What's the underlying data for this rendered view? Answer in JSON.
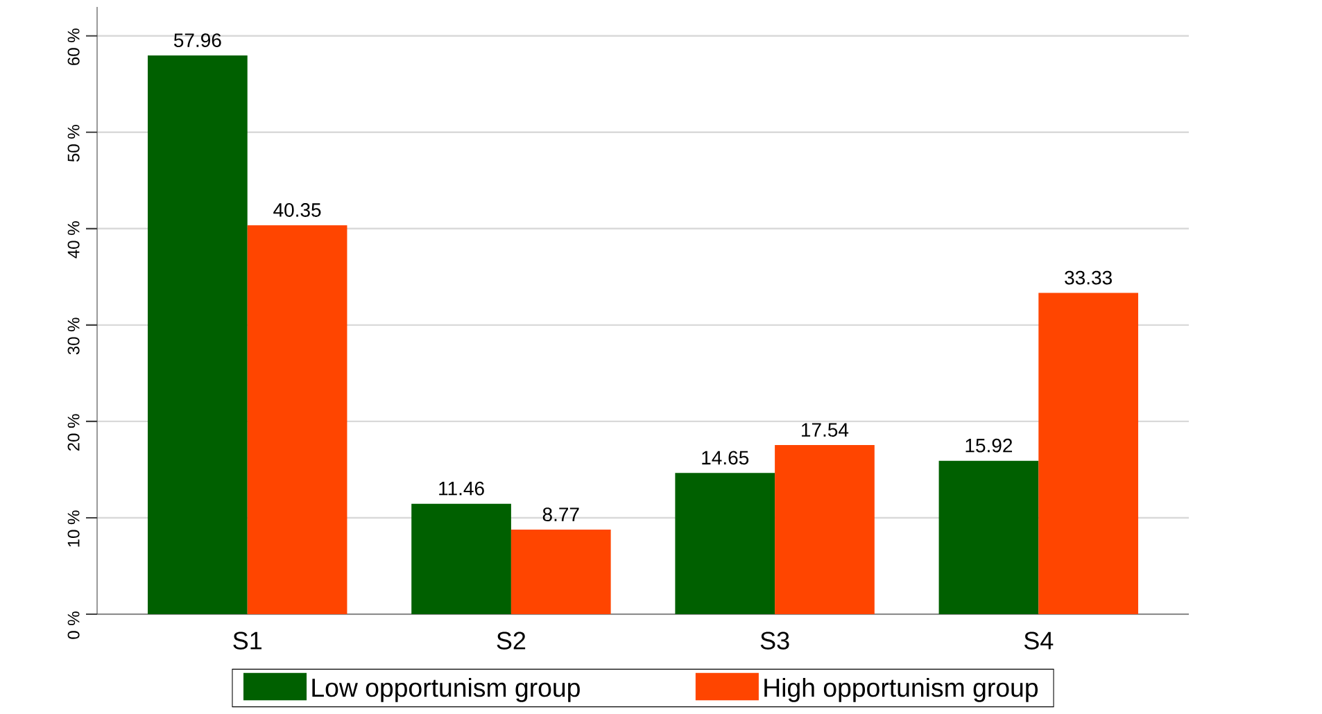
{
  "chart_data": {
    "type": "bar",
    "categories": [
      "S1",
      "S2",
      "S3",
      "S4"
    ],
    "series": [
      {
        "name": "Low opportunism group",
        "color": "#006000",
        "values": [
          57.96,
          11.46,
          14.65,
          15.92
        ]
      },
      {
        "name": "High opportunism group",
        "color": "#ff4500",
        "values": [
          40.35,
          8.77,
          17.54,
          33.33
        ]
      }
    ],
    "ylim": [
      0,
      63
    ],
    "yticks": [
      {
        "value": 0,
        "label": "0 %"
      },
      {
        "value": 10,
        "label": "10 %"
      },
      {
        "value": 20,
        "label": "20 %"
      },
      {
        "value": 30,
        "label": "30 %"
      },
      {
        "value": 40,
        "label": "40 %"
      },
      {
        "value": 50,
        "label": "50 %"
      },
      {
        "value": 60,
        "label": "60 %"
      }
    ],
    "grid": "y",
    "legend": "bottom",
    "data_labels": true
  }
}
